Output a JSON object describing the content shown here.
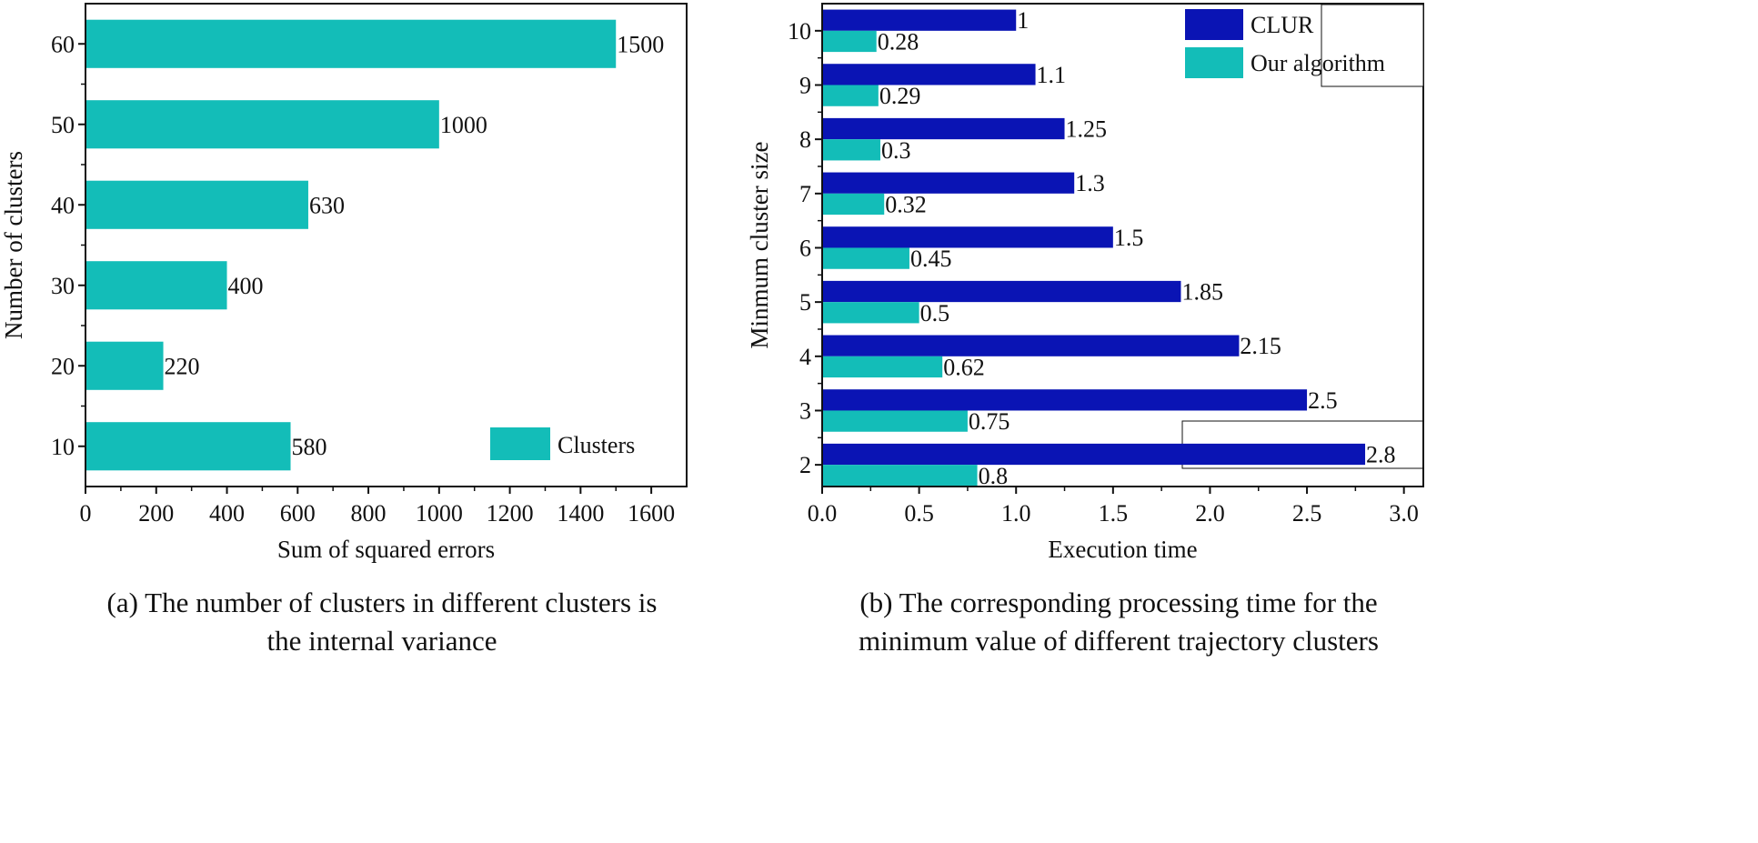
{
  "chart_data": [
    {
      "type": "bar",
      "orientation": "horizontal",
      "categories": [
        10,
        20,
        30,
        40,
        50,
        60
      ],
      "series": [
        {
          "name": "Clusters",
          "values": [
            580,
            220,
            400,
            630,
            1000,
            1500
          ],
          "color": "#13bdb8"
        }
      ],
      "data_labels": [
        "580",
        "220",
        "400",
        "630",
        "1000",
        "1500"
      ],
      "xlabel": "Sum of squared errors",
      "ylabel": "Number of clusters",
      "xlim": [
        0,
        1700
      ],
      "ylim": [
        5,
        65
      ],
      "xticks": [
        "0",
        "200",
        "400",
        "600",
        "800",
        "1000",
        "1200",
        "1400",
        "1600"
      ],
      "yticks": [
        "10",
        "20",
        "30",
        "40",
        "50",
        "60"
      ],
      "legend": "bottom-right",
      "grid": false,
      "caption_lines": [
        "(a) The number of clusters in different clusters is",
        "the internal variance"
      ]
    },
    {
      "type": "bar",
      "orientation": "horizontal",
      "categories": [
        2,
        3,
        4,
        5,
        6,
        7,
        8,
        9,
        10
      ],
      "series": [
        {
          "name": "CLUR",
          "values": [
            2.8,
            2.5,
            2.15,
            1.85,
            1.5,
            1.3,
            1.25,
            1.1,
            1
          ],
          "labels": [
            "2.8",
            "2.5",
            "2.15",
            "1.85",
            "1.5",
            "1.3",
            "1.25",
            "1.1",
            "1"
          ],
          "color": "#0a14b4"
        },
        {
          "name": "Our algorithm",
          "values": [
            0.8,
            0.75,
            0.62,
            0.5,
            0.45,
            0.32,
            0.3,
            0.29,
            0.28
          ],
          "labels": [
            "0.8",
            "0.75",
            "0.62",
            "0.5",
            "0.45",
            "0.32",
            "0.3",
            "0.29",
            "0.28"
          ],
          "color": "#13bdb8"
        }
      ],
      "xlabel": "Execution time",
      "ylabel": "Minmum cluster size",
      "xlim": [
        0,
        3.1
      ],
      "ylim": [
        1.6,
        10.5
      ],
      "xticks": [
        "0.0",
        "0.5",
        "1.0",
        "1.5",
        "2.0",
        "2.5",
        "3.0"
      ],
      "yticks": [
        "2",
        "3",
        "4",
        "5",
        "6",
        "7",
        "8",
        "9",
        "10"
      ],
      "legend": "top-right",
      "grid": false,
      "caption_lines": [
        "(b) The corresponding processing time for the",
        "minimum value of different trajectory clusters"
      ]
    }
  ]
}
